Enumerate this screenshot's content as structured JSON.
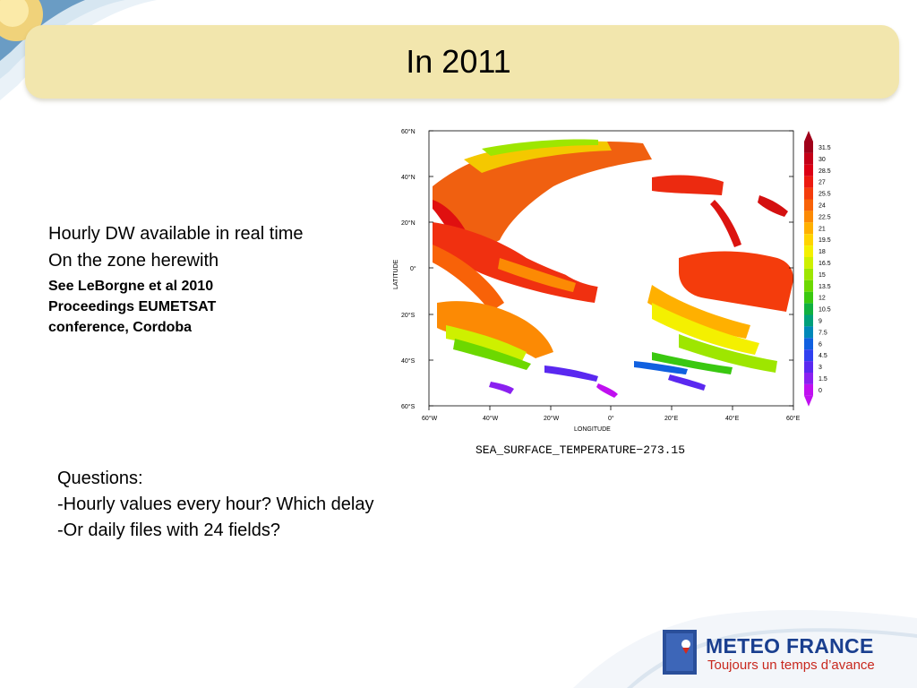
{
  "slide": {
    "title": "In 2011",
    "left_text": {
      "line1": "Hourly DW available in real time",
      "line2": "On the zone herewith",
      "ref1": "See LeBorgne et al 2010",
      "ref2": "Proceedings EUMETSAT",
      "ref3": "conference, Cordoba"
    },
    "questions": {
      "heading": "Questions:",
      "q1": "-Hourly values every hour? Which delay",
      "q2": "-Or daily files with 24 fields?"
    }
  },
  "map": {
    "y_axis_label": "LATITUDE",
    "x_axis_label": "LONGITUDE",
    "lat_ticks": [
      "60°N",
      "40°N",
      "20°N",
      "0°",
      "20°S",
      "40°S",
      "60°S"
    ],
    "lon_ticks": [
      "60°W",
      "40°W",
      "20°W",
      "0°",
      "20°E",
      "40°E",
      "60°E"
    ],
    "caption": "SEA_SURFACE_TEMPERATURE−273.15",
    "colorbar_values": [
      "31.5",
      "30",
      "28.5",
      "27",
      "25.5",
      "24",
      "22.5",
      "21",
      "19.5",
      "18",
      "16.5",
      "15",
      "13.5",
      "12",
      "10.5",
      "9",
      "7.5",
      "6",
      "4.5",
      "3",
      "1.5",
      "0"
    ],
    "colorbar_colors": [
      "#a0001a",
      "#c40018",
      "#dc0014",
      "#ec1a10",
      "#f43c0c",
      "#f86208",
      "#fc8a04",
      "#ffb000",
      "#ffd400",
      "#f4f000",
      "#cef000",
      "#9ee600",
      "#6cd800",
      "#3ac810",
      "#10b040",
      "#00a07a",
      "#0088b8",
      "#1060e0",
      "#3040f0",
      "#5a28f0",
      "#8a20f0",
      "#c010f0"
    ]
  },
  "logo": {
    "name": "METEO FRANCE",
    "tagline": "Toujours un temps d’avance"
  }
}
